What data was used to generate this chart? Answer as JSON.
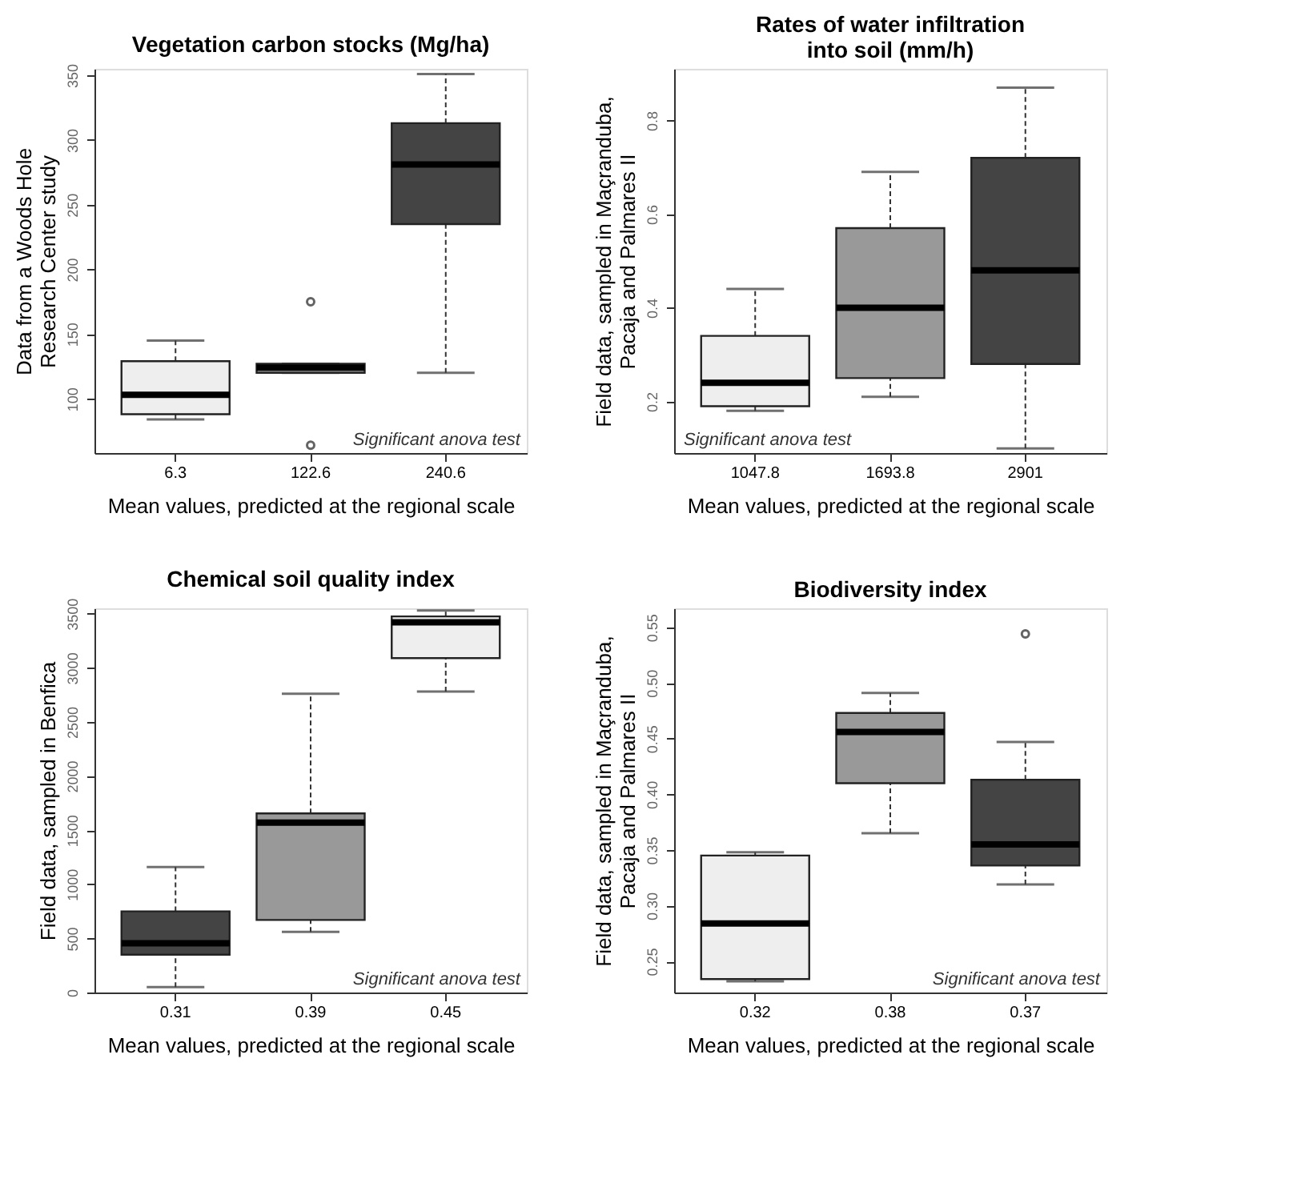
{
  "chart_data": [
    {
      "type": "box",
      "title": "Vegetation carbon stocks (Mg/ha)",
      "ylabel": "Data from a Woods Hole\nResearch Center study",
      "xlabel": "Mean values, predicted at the regional scale",
      "categories": [
        "6.3",
        "122.6",
        "240.6"
      ],
      "colors": [
        "#eeeeee",
        "#999999",
        "#444444"
      ],
      "boxes": [
        {
          "low": 84,
          "q1": 88,
          "median": 103,
          "q3": 129,
          "high": 145
        },
        {
          "low": 120,
          "q1": 120,
          "median": 124,
          "q3": 127,
          "high": 127,
          "outliers": [
            175,
            64
          ]
        },
        {
          "low": 120,
          "q1": 235,
          "median": 281,
          "q3": 313,
          "high": 351
        }
      ],
      "ylim": [
        58,
        355
      ],
      "yticks": [
        100,
        150,
        200,
        250,
        300,
        350
      ],
      "grid": false,
      "annotations": [
        "Significant anova test"
      ]
    },
    {
      "type": "box",
      "title": "Rates of water infiltration\ninto soil (mm/h)",
      "ylabel": "Field data, sampled in Maçranduba,\nPacaja and Palmares II",
      "xlabel": "Mean values, predicted at the regional scale",
      "categories": [
        "1047.8",
        "1693.8",
        "2901"
      ],
      "colors": [
        "#eeeeee",
        "#999999",
        "#444444"
      ],
      "boxes": [
        {
          "low": 0.18,
          "q1": 0.19,
          "median": 0.24,
          "q3": 0.34,
          "high": 0.44
        },
        {
          "low": 0.21,
          "q1": 0.25,
          "median": 0.4,
          "q3": 0.57,
          "high": 0.69
        },
        {
          "low": 0.1,
          "q1": 0.28,
          "median": 0.48,
          "q3": 0.72,
          "high": 0.87
        }
      ],
      "ylim": [
        0.09,
        0.91
      ],
      "yticks": [
        0.2,
        0.4,
        0.6,
        0.8
      ],
      "grid": false,
      "annotations": [
        "Significant anova test"
      ]
    },
    {
      "type": "box",
      "title": "Chemical soil quality index",
      "ylabel": "Field data, sampled in Benfica",
      "xlabel": "Mean values, predicted at the regional scale",
      "categories": [
        "0.31",
        "0.39",
        "0.45"
      ],
      "colors": [
        "#444444",
        "#999999",
        "#eeeeee"
      ],
      "boxes": [
        {
          "low": 50,
          "q1": 350,
          "median": 455,
          "q3": 750,
          "high": 1160
        },
        {
          "low": 560,
          "q1": 670,
          "median": 1570,
          "q3": 1655,
          "high": 2760
        },
        {
          "low": 2780,
          "q1": 3090,
          "median": 3420,
          "q3": 3475,
          "high": 3530
        }
      ],
      "ylim": [
        0,
        3550
      ],
      "yticks": [
        0,
        500,
        1000,
        1500,
        2000,
        2500,
        3000,
        3500
      ],
      "grid": false,
      "annotations": [
        "Significant anova test"
      ]
    },
    {
      "type": "box",
      "title": "Biodiversity index",
      "ylabel": "Field data, sampled in Maçranduba,\nPacaja and Palmares II",
      "xlabel": "Mean values, predicted at the regional scale",
      "categories": [
        "0.32",
        "0.38",
        "0.37"
      ],
      "colors": [
        "#eeeeee",
        "#999999",
        "#444444"
      ],
      "boxes": [
        {
          "low": 0.232,
          "q1": 0.234,
          "median": 0.284,
          "q3": 0.345,
          "high": 0.348
        },
        {
          "low": 0.365,
          "q1": 0.41,
          "median": 0.456,
          "q3": 0.473,
          "high": 0.491
        },
        {
          "low": 0.319,
          "q1": 0.336,
          "median": 0.355,
          "q3": 0.413,
          "high": 0.447,
          "outliers": [
            0.544
          ]
        }
      ],
      "ylim": [
        0.222,
        0.567
      ],
      "yticks": [
        0.25,
        {
          "value": 0.3,
          "label": "0.30"
        },
        0.35,
        {
          "value": 0.4,
          "label": "0.40"
        },
        0.45,
        {
          "value": 0.5,
          "label": "0.50"
        },
        0.55
      ],
      "grid": false,
      "annotations": [
        "Significant anova test"
      ]
    }
  ]
}
